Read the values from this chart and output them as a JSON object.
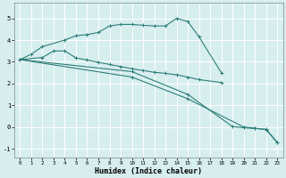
{
  "xlabel": "Humidex (Indice chaleur)",
  "xlim": [
    -0.5,
    23.5
  ],
  "ylim": [
    -1.4,
    5.7
  ],
  "xticks": [
    0,
    1,
    2,
    3,
    4,
    5,
    6,
    7,
    8,
    9,
    10,
    11,
    12,
    13,
    14,
    15,
    16,
    17,
    18,
    19,
    20,
    21,
    22,
    23
  ],
  "yticks": [
    -1,
    0,
    1,
    2,
    3,
    4,
    5
  ],
  "bg_color": "#d6eeee",
  "grid_color": "#ffffff",
  "line_color": "#2e7d78",
  "line1_x": [
    0,
    1,
    2,
    4,
    5,
    6,
    7,
    8,
    9,
    10,
    11,
    12,
    13,
    14,
    15,
    16,
    18
  ],
  "line1_y": [
    3.1,
    3.35,
    3.7,
    4.0,
    4.2,
    4.25,
    4.35,
    4.65,
    4.72,
    4.72,
    4.68,
    4.65,
    4.65,
    5.0,
    4.85,
    4.15,
    2.5
  ],
  "line2_x": [
    0,
    2,
    3,
    4,
    5,
    6,
    7,
    8,
    9,
    10,
    11,
    12,
    13,
    14,
    15,
    16,
    18
  ],
  "line2_y": [
    3.1,
    3.2,
    3.5,
    3.5,
    3.18,
    3.08,
    2.98,
    2.88,
    2.78,
    2.68,
    2.6,
    2.52,
    2.47,
    2.4,
    2.3,
    2.18,
    2.05
  ],
  "line3_x": [
    0,
    10,
    15,
    19,
    20,
    21,
    22,
    23
  ],
  "line3_y": [
    3.1,
    2.55,
    1.5,
    0.02,
    -0.03,
    -0.07,
    -0.1,
    -0.7
  ],
  "line4_x": [
    0,
    10,
    15,
    20,
    21,
    22,
    23
  ],
  "line4_y": [
    3.1,
    2.3,
    1.3,
    0.0,
    -0.05,
    -0.12,
    -0.72
  ]
}
